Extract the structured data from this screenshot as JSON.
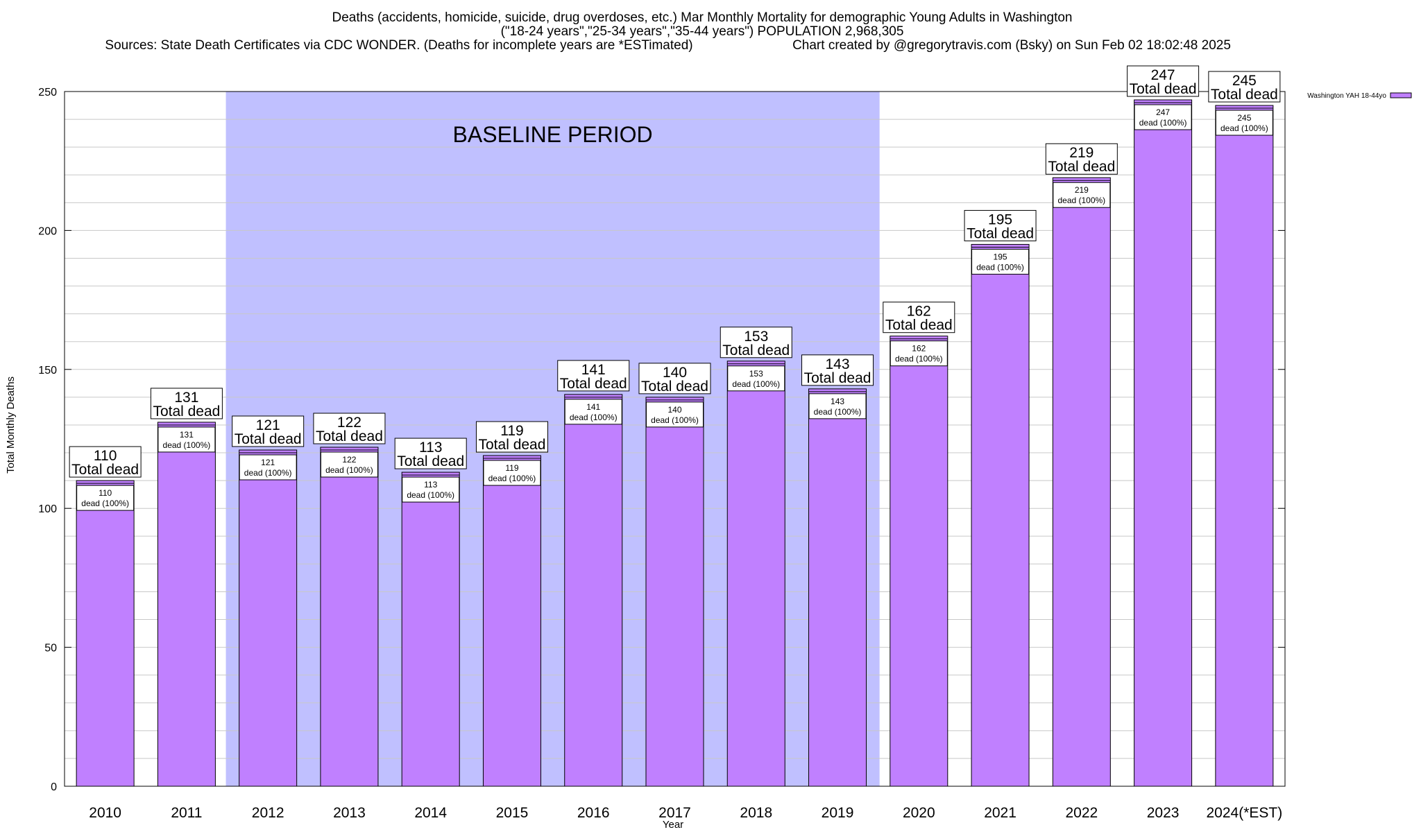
{
  "titles": {
    "line1": "Deaths (accidents, homicide, suicide, drug overdoses, etc.) Mar Monthly Mortality for demographic Young Adults in Washington",
    "line2": "(\"18-24 years\",\"25-34 years\",\"35-44 years\") POPULATION 2,968,305",
    "line3a": "Sources: State Death Certificates via CDC WONDER. (Deaths for incomplete years are *ESTimated)",
    "line3b": "Chart created by @gregorytravis.com (Bsky) on Sun Feb 02 18:02:48 2025"
  },
  "colors": {
    "bar_fill": "#c080ff",
    "bar_stroke": "#000000",
    "baseline_shade": "#c0c0ff",
    "grid": "#c8c8c8"
  },
  "chart_data": {
    "type": "bar",
    "xlabel": "Year",
    "ylabel": "Total Monthly Deaths",
    "ylim": [
      0,
      250
    ],
    "yticks": [
      0,
      50,
      100,
      150,
      200,
      250
    ],
    "grid": true,
    "legend_placement": "top-right",
    "categories": [
      "2010",
      "2011",
      "2012",
      "2013",
      "2014",
      "2015",
      "2016",
      "2017",
      "2018",
      "2019",
      "2020",
      "2021",
      "2022",
      "2023",
      "2024(*EST)"
    ],
    "series": [
      {
        "name": "Washington YAH 18-44yo",
        "values": [
          110,
          131,
          121,
          122,
          113,
          119,
          141,
          140,
          153,
          143,
          162,
          195,
          219,
          247,
          245
        ]
      }
    ],
    "bar_label_top": "Total dead",
    "bar_label_inner": "dead (100%)",
    "baseline_period": {
      "label": "BASELINE PERIOD",
      "start": "2012",
      "end": "2019"
    }
  }
}
